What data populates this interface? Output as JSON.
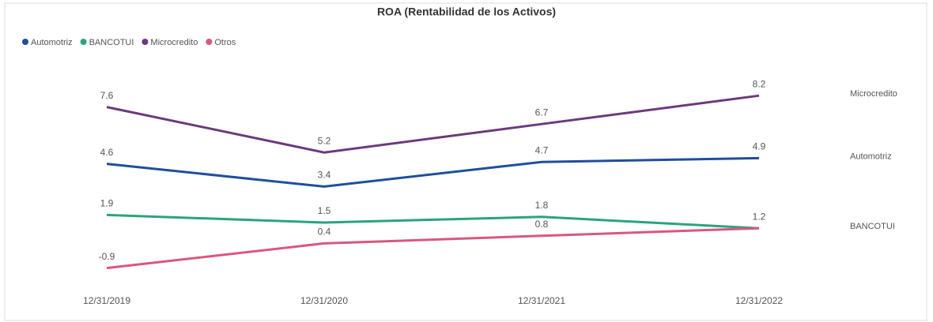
{
  "chart_data": {
    "type": "line",
    "title": "ROA (Rentabilidad de los Activos)",
    "categories": [
      "12/31/2019",
      "12/31/2020",
      "12/31/2021",
      "12/31/2022"
    ],
    "series": [
      {
        "name": "Automotriz",
        "color": "#1f4e9c",
        "values": [
          4.6,
          3.4,
          4.7,
          4.9
        ],
        "end_label": true
      },
      {
        "name": "BANCOTUI",
        "color": "#2aa37f",
        "values": [
          1.9,
          1.5,
          1.8,
          1.2
        ],
        "end_label": true,
        "value_labels": [
          "1.9",
          "1.5",
          "1.8",
          null
        ]
      },
      {
        "name": "Microcredito",
        "color": "#6b3a7d",
        "values": [
          7.6,
          5.2,
          6.7,
          8.2
        ],
        "end_label": true
      },
      {
        "name": "Otros",
        "color": "#d9577f",
        "values": [
          -0.9,
          0.4,
          0.8,
          1.2
        ],
        "end_label": false
      }
    ],
    "ylim": [
      -1.5,
      9.5
    ],
    "legend": "top-left",
    "data_labels": true
  }
}
